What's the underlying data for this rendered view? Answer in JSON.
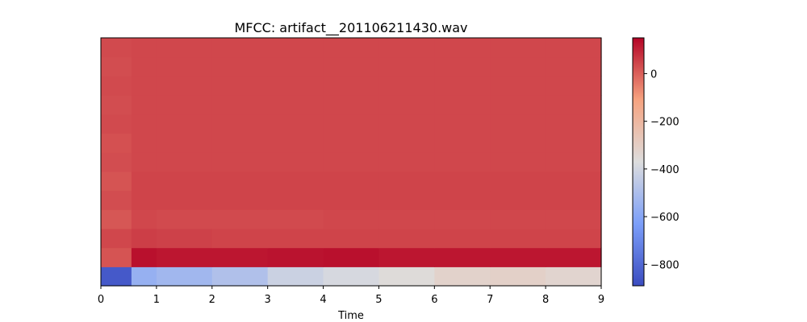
{
  "chart_data": {
    "type": "heatmap",
    "title": "MFCC: artifact__201106211430.wav",
    "xlabel": "Time",
    "ylabel": "",
    "xlim": [
      0,
      9
    ],
    "x_ticks": [
      "0",
      "1",
      "2",
      "3",
      "4",
      "5",
      "6",
      "7",
      "8",
      "9"
    ],
    "y_ticks": [],
    "n_coefficients": 13,
    "colormap": "coolwarm",
    "colorbar": {
      "vmin": -890,
      "vmax": 150,
      "ticks": [
        0,
        -200,
        -400,
        -600,
        -800
      ],
      "tick_labels": [
        "0",
        "−200",
        "−400",
        "−600",
        "−800"
      ]
    },
    "segments_x": [
      0,
      0.55,
      1,
      2,
      3,
      4,
      5,
      6,
      7,
      8,
      9
    ],
    "rows_bottom_to_top": [
      {
        "coefficient": 0,
        "values": [
          -850,
          -560,
          -530,
          -490,
          -420,
          -390,
          -360,
          -320,
          -310,
          -330
        ]
      },
      {
        "coefficient": 1,
        "values": [
          20,
          130,
          120,
          120,
          125,
          130,
          120,
          120,
          120,
          120
        ]
      },
      {
        "coefficient": 2,
        "values": [
          40,
          55,
          50,
          45,
          45,
          45,
          45,
          45,
          45,
          45
        ]
      },
      {
        "coefficient": 3,
        "values": [
          15,
          40,
          35,
          35,
          35,
          40,
          40,
          40,
          40,
          40
        ]
      },
      {
        "coefficient": 4,
        "values": [
          30,
          45,
          45,
          45,
          45,
          45,
          45,
          45,
          45,
          45
        ]
      },
      {
        "coefficient": 5,
        "values": [
          20,
          45,
          45,
          45,
          45,
          45,
          45,
          45,
          45,
          45
        ]
      },
      {
        "coefficient": 6,
        "values": [
          30,
          40,
          40,
          40,
          40,
          40,
          40,
          40,
          40,
          40
        ]
      },
      {
        "coefficient": 7,
        "values": [
          25,
          40,
          40,
          40,
          40,
          40,
          40,
          40,
          40,
          40
        ]
      },
      {
        "coefficient": 8,
        "values": [
          35,
          40,
          40,
          40,
          40,
          40,
          40,
          40,
          40,
          40
        ]
      },
      {
        "coefficient": 9,
        "values": [
          30,
          40,
          40,
          40,
          40,
          40,
          40,
          40,
          40,
          40
        ]
      },
      {
        "coefficient": 10,
        "values": [
          35,
          40,
          40,
          40,
          40,
          40,
          40,
          40,
          40,
          40
        ]
      },
      {
        "coefficient": 11,
        "values": [
          30,
          40,
          40,
          40,
          40,
          40,
          40,
          40,
          40,
          40
        ]
      },
      {
        "coefficient": 12,
        "values": [
          35,
          40,
          40,
          40,
          40,
          40,
          40,
          40,
          40,
          40
        ]
      }
    ]
  }
}
